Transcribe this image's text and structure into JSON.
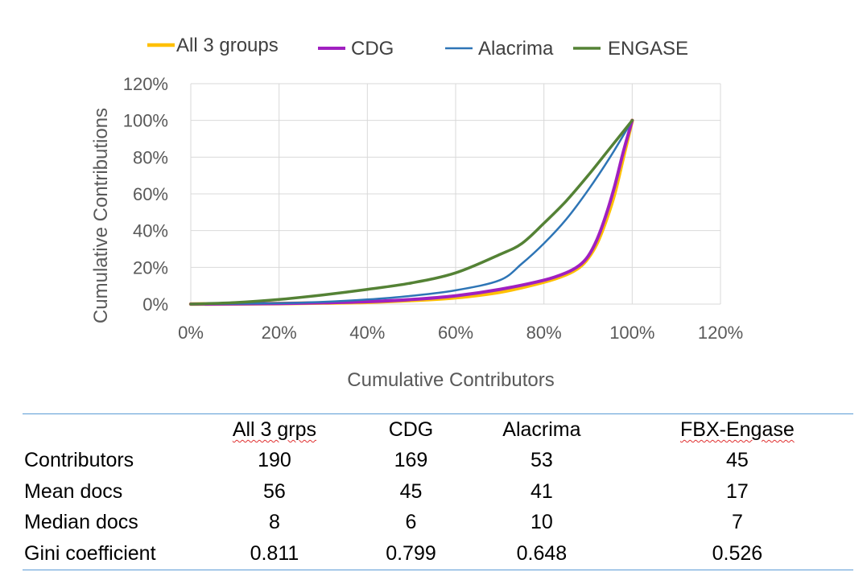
{
  "chart_data": {
    "type": "line",
    "xlabel": "Cumulative Contributors",
    "ylabel": "Cumulative Contributions",
    "xlim": [
      0,
      1.2
    ],
    "ylim": [
      0,
      1.2
    ],
    "x_ticks": [
      "0%",
      "20%",
      "40%",
      "60%",
      "80%",
      "100%",
      "120%"
    ],
    "y_ticks": [
      "0%",
      "20%",
      "40%",
      "60%",
      "80%",
      "100%",
      "120%"
    ],
    "grid": true,
    "legend_position": "top",
    "series": [
      {
        "name": "All 3 groups",
        "color": "#ffc000",
        "points": [
          [
            0,
            0
          ],
          [
            0.1,
            0.001
          ],
          [
            0.2,
            0.003
          ],
          [
            0.3,
            0.006
          ],
          [
            0.4,
            0.01
          ],
          [
            0.5,
            0.02
          ],
          [
            0.6,
            0.035
          ],
          [
            0.7,
            0.065
          ],
          [
            0.8,
            0.12
          ],
          [
            0.85,
            0.16
          ],
          [
            0.88,
            0.2
          ],
          [
            0.9,
            0.25
          ],
          [
            0.92,
            0.33
          ],
          [
            0.94,
            0.45
          ],
          [
            0.96,
            0.6
          ],
          [
            0.98,
            0.8
          ],
          [
            1.0,
            1.0
          ]
        ]
      },
      {
        "name": "CDG",
        "color": "#a020c0",
        "points": [
          [
            0,
            0
          ],
          [
            0.1,
            0.001
          ],
          [
            0.2,
            0.003
          ],
          [
            0.3,
            0.007
          ],
          [
            0.4,
            0.013
          ],
          [
            0.5,
            0.025
          ],
          [
            0.6,
            0.045
          ],
          [
            0.7,
            0.08
          ],
          [
            0.8,
            0.13
          ],
          [
            0.85,
            0.17
          ],
          [
            0.88,
            0.21
          ],
          [
            0.9,
            0.26
          ],
          [
            0.92,
            0.35
          ],
          [
            0.94,
            0.48
          ],
          [
            0.96,
            0.64
          ],
          [
            0.98,
            0.83
          ],
          [
            1.0,
            1.0
          ]
        ]
      },
      {
        "name": "Alacrima",
        "color": "#2e75b6",
        "points": [
          [
            0,
            0
          ],
          [
            0.1,
            0.002
          ],
          [
            0.2,
            0.005
          ],
          [
            0.3,
            0.012
          ],
          [
            0.4,
            0.025
          ],
          [
            0.5,
            0.045
          ],
          [
            0.6,
            0.075
          ],
          [
            0.7,
            0.13
          ],
          [
            0.75,
            0.22
          ],
          [
            0.8,
            0.33
          ],
          [
            0.85,
            0.46
          ],
          [
            0.9,
            0.62
          ],
          [
            0.95,
            0.8
          ],
          [
            1.0,
            1.0
          ]
        ]
      },
      {
        "name": "ENGASE",
        "color": "#548235",
        "points": [
          [
            0,
            0
          ],
          [
            0.1,
            0.008
          ],
          [
            0.2,
            0.025
          ],
          [
            0.3,
            0.05
          ],
          [
            0.4,
            0.08
          ],
          [
            0.5,
            0.115
          ],
          [
            0.6,
            0.17
          ],
          [
            0.7,
            0.27
          ],
          [
            0.75,
            0.33
          ],
          [
            0.8,
            0.44
          ],
          [
            0.85,
            0.56
          ],
          [
            0.9,
            0.7
          ],
          [
            0.95,
            0.85
          ],
          [
            1.0,
            1.0
          ]
        ]
      }
    ]
  },
  "table": {
    "headers": [
      "",
      "All 3 grps",
      "CDG",
      "Alacrima",
      "FBX-Engase"
    ],
    "rows": [
      {
        "label": "Contributors",
        "values": [
          "190",
          "169",
          "53",
          "45"
        ]
      },
      {
        "label": "Mean docs",
        "values": [
          "56",
          "45",
          "41",
          "17"
        ]
      },
      {
        "label": "Median docs",
        "values": [
          "8",
          "6",
          "10",
          "7"
        ]
      },
      {
        "label": "Gini coefficient",
        "values": [
          "0.811",
          "0.799",
          "0.648",
          "0.526"
        ]
      }
    ]
  }
}
